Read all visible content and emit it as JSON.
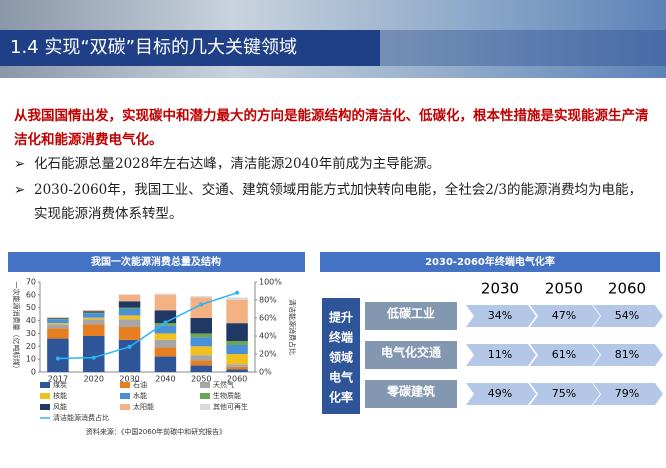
{
  "header": {
    "title": "1.4 实现“双碳”目标的几大关键领域"
  },
  "intro": "从我国国情出发，实现碳中和潜力最大的方向是能源结构的清洁化、低碳化，根本性措施是实现能源生产清洁化和能源消费电气化。",
  "bullets": [
    "化石能源总量2028年左右达峰，清洁能源2040年前成为主导能源。",
    "2030-2060年，我国工业、交通、建筑领域用能方式加快转向电能，全社会2/3的能源消费均为电能，实现能源消费体系转型。"
  ],
  "left_panel": {
    "title": "我国一次能源消费总量及结构",
    "source": "资料来源：《中国2060年前碳中和研究报告》",
    "chart_data": {
      "type": "stacked-bar-line",
      "ylabel": "一次能源消费量（亿吨标煤）",
      "y2label": "清洁能源消费占比",
      "categories": [
        "2017",
        "2020",
        "2030",
        "2040",
        "2050",
        "2060"
      ],
      "ylim": [
        0,
        70
      ],
      "yticks": [
        0,
        10,
        20,
        30,
        40,
        50,
        60,
        70
      ],
      "y2lim": [
        0,
        100
      ],
      "y2ticks": [
        {
          "value": 0,
          "label": "0%"
        },
        {
          "value": 20,
          "label": "20%"
        },
        {
          "value": 40,
          "label": "40%"
        },
        {
          "value": 60,
          "label": "60%"
        },
        {
          "value": 80,
          "label": "80%"
        },
        {
          "value": 100,
          "label": "100%"
        }
      ],
      "series": [
        {
          "name": "煤炭",
          "color": "#2e5597",
          "values": [
            26,
            28,
            25,
            12,
            5,
            2
          ]
        },
        {
          "name": "石油",
          "color": "#e67e22",
          "values": [
            8,
            9,
            10,
            7,
            4,
            2
          ]
        },
        {
          "name": "天然气",
          "color": "#a6a6a6",
          "values": [
            3,
            4,
            6,
            6,
            4,
            2
          ]
        },
        {
          "name": "核能",
          "color": "#f0c020",
          "values": [
            1,
            1.3,
            3,
            5,
            7,
            8
          ]
        },
        {
          "name": "水能",
          "color": "#4a90d9",
          "values": [
            3,
            3.5,
            5,
            6,
            7,
            7
          ]
        },
        {
          "name": "生物质能",
          "color": "#6aa84f",
          "values": [
            0.5,
            0.5,
            1,
            2,
            3,
            3
          ]
        },
        {
          "name": "风能",
          "color": "#1f3864",
          "values": [
            0.5,
            1,
            5,
            10,
            12,
            14
          ]
        },
        {
          "name": "太阳能",
          "color": "#f4b183",
          "values": [
            0.5,
            0.8,
            5,
            12,
            16,
            18
          ]
        },
        {
          "name": "其他可再生",
          "color": "#d9d9d9",
          "values": [
            0,
            0,
            0.5,
            1,
            1,
            2
          ]
        },
        {
          "name": "清洁能源消费占比",
          "color": "#29b6f6",
          "axis": "y2",
          "values": [
            15,
            16,
            28,
            55,
            75,
            88
          ]
        }
      ]
    }
  },
  "right_panel": {
    "title": "2030-2060年终端电气化率",
    "row_header": [
      "提升",
      "终端",
      "领域",
      "电气",
      "化率"
    ],
    "columns": [
      "2030",
      "2050",
      "2060"
    ],
    "rows": [
      {
        "label": "低碳工业",
        "values": [
          "34%",
          "47%",
          "54%"
        ]
      },
      {
        "label": "电气化交通",
        "values": [
          "11%",
          "61%",
          "81%"
        ]
      },
      {
        "label": "零碳建筑",
        "values": [
          "49%",
          "75%",
          "79%"
        ]
      }
    ]
  }
}
